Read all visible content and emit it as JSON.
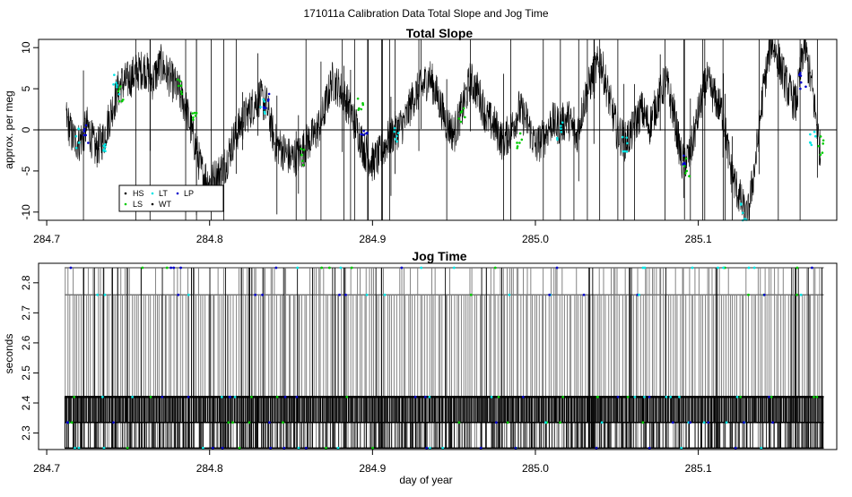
{
  "figure": {
    "title": "171011a   Calibration Data Total Slope and Jog Time",
    "xlabel": "day of year"
  },
  "colors": {
    "HS": "#000000",
    "LS": "#00cc00",
    "LT": "#00e5e5",
    "WT": "#000000",
    "LP": "#0000cc",
    "trace": "#000000",
    "trace_gray": "#777777"
  },
  "chart_data": [
    {
      "type": "line",
      "title": "Total Slope",
      "xlabel": "",
      "ylabel": "approx. per meg",
      "xlim": [
        284.695,
        285.185
      ],
      "ylim": [
        -11,
        11
      ],
      "x_ticks": [
        284.7,
        284.8,
        284.9,
        285.0,
        285.1
      ],
      "x_tick_labels": [
        "284.7",
        "284.8",
        "284.9",
        "285.0",
        "285.1"
      ],
      "y_ticks": [
        -10,
        -5,
        0,
        5,
        10
      ],
      "y_tick_labels": [
        "-10",
        "-5",
        "0",
        "5",
        "10"
      ],
      "hline": 0,
      "legend": {
        "placement": "bottom-left",
        "entries": [
          "HS",
          "LS",
          "LT",
          "WT",
          "LP"
        ]
      },
      "series": [
        {
          "x": [
            284.712,
            284.716,
            284.72,
            284.725,
            284.73,
            284.735,
            284.74,
            284.745,
            284.75,
            284.755,
            284.76,
            284.765,
            284.77,
            284.775,
            284.78,
            284.785,
            284.79,
            284.795,
            284.8,
            284.805,
            284.81,
            284.815,
            284.82,
            284.825,
            284.83,
            284.835,
            284.84,
            284.845,
            284.85,
            284.855,
            284.86,
            284.865,
            284.87,
            284.875,
            284.88,
            284.885,
            284.89,
            284.895,
            284.9,
            284.905,
            284.91,
            284.915,
            284.92,
            284.925,
            284.93,
            284.935,
            284.94,
            284.945,
            284.95,
            284.955,
            284.96,
            284.965,
            284.97,
            284.975,
            284.98,
            284.985,
            284.99,
            284.995,
            285.0,
            285.005,
            285.01,
            285.015,
            285.02,
            285.025,
            285.03,
            285.035,
            285.04,
            285.045,
            285.05,
            285.055,
            285.06,
            285.065,
            285.07,
            285.075,
            285.08,
            285.085,
            285.09,
            285.095,
            285.1,
            285.105,
            285.11,
            285.115,
            285.12,
            285.125,
            285.13,
            285.135,
            285.14,
            285.145,
            285.15,
            285.155,
            285.16,
            285.165,
            285.17,
            285.175
          ],
          "y": [
            1.5,
            -1.0,
            -1.5,
            0.5,
            -2.5,
            -1.0,
            2.5,
            5.5,
            6.0,
            7.0,
            7.5,
            6.0,
            8.0,
            6.5,
            5.0,
            3.0,
            -1.0,
            -5.0,
            -6.5,
            -5.5,
            -4.0,
            -1.0,
            1.0,
            2.5,
            4.0,
            3.0,
            -1.5,
            -2.5,
            -3.5,
            -3.0,
            -1.5,
            -0.5,
            2.0,
            6.0,
            5.0,
            3.0,
            0.5,
            -2.5,
            -4.0,
            -3.0,
            -1.0,
            0.0,
            1.0,
            4.0,
            5.0,
            6.5,
            4.0,
            1.0,
            -0.5,
            2.5,
            6.0,
            4.5,
            1.5,
            0.5,
            -1.5,
            0.0,
            2.5,
            1.0,
            -2.0,
            -1.0,
            1.0,
            0.5,
            1.5,
            -1.0,
            3.5,
            6.5,
            8.5,
            4.0,
            0.0,
            -1.5,
            0.0,
            2.5,
            0.5,
            3.5,
            6.0,
            2.0,
            -4.0,
            -3.0,
            2.0,
            6.0,
            4.0,
            2.0,
            -5.0,
            -8.0,
            -11.0,
            -4.0,
            5.0,
            11.0,
            8.0,
            5.0,
            3.0,
            10.5,
            5.0,
            -3.0
          ]
        }
      ],
      "markers": [
        {
          "x": 284.72,
          "y": -1.0,
          "type": "LT"
        },
        {
          "x": 284.725,
          "y": -0.5,
          "type": "LP"
        },
        {
          "x": 284.735,
          "y": -1.5,
          "type": "LT"
        },
        {
          "x": 284.743,
          "y": 5.5,
          "type": "LT"
        },
        {
          "x": 284.745,
          "y": 4.5,
          "type": "LS"
        },
        {
          "x": 284.781,
          "y": 5.0,
          "type": "LS"
        },
        {
          "x": 284.79,
          "y": 2.0,
          "type": "LS"
        },
        {
          "x": 284.833,
          "y": 3.0,
          "type": "LT"
        },
        {
          "x": 284.835,
          "y": 3.5,
          "type": "LP"
        },
        {
          "x": 284.858,
          "y": -3.5,
          "type": "LS"
        },
        {
          "x": 284.893,
          "y": 3.0,
          "type": "LS"
        },
        {
          "x": 284.895,
          "y": -0.5,
          "type": "LP"
        },
        {
          "x": 284.914,
          "y": -1.0,
          "type": "LT"
        },
        {
          "x": 284.955,
          "y": 1.5,
          "type": "LS"
        },
        {
          "x": 284.99,
          "y": -1.5,
          "type": "LS"
        },
        {
          "x": 285.015,
          "y": 0.0,
          "type": "LT"
        },
        {
          "x": 285.055,
          "y": -2.0,
          "type": "LT"
        },
        {
          "x": 285.09,
          "y": -3.0,
          "type": "LP"
        },
        {
          "x": 285.093,
          "y": -4.5,
          "type": "LS"
        },
        {
          "x": 285.128,
          "y": -10.0,
          "type": "LT"
        },
        {
          "x": 285.164,
          "y": 6.0,
          "type": "LP"
        },
        {
          "x": 285.17,
          "y": -1.0,
          "type": "LT"
        },
        {
          "x": 285.175,
          "y": -2.0,
          "type": "LS"
        }
      ]
    },
    {
      "type": "line",
      "title": "Jog Time",
      "xlabel": "day of year",
      "ylabel": "seconds",
      "xlim": [
        284.695,
        285.185
      ],
      "ylim": [
        2.245,
        2.865
      ],
      "x_ticks": [
        284.7,
        284.8,
        284.9,
        285.0,
        285.1
      ],
      "x_tick_labels": [
        "284.7",
        "284.8",
        "284.9",
        "285.0",
        "285.1"
      ],
      "y_ticks": [
        2.3,
        2.4,
        2.5,
        2.6,
        2.7,
        2.8
      ],
      "y_tick_labels": [
        "2.3",
        "2.4",
        "2.5",
        "2.6",
        "2.7",
        "2.8"
      ],
      "levels": [
        2.25,
        2.335,
        2.42,
        2.76,
        2.85
      ],
      "x_range": [
        284.711,
        285.177
      ]
    }
  ]
}
